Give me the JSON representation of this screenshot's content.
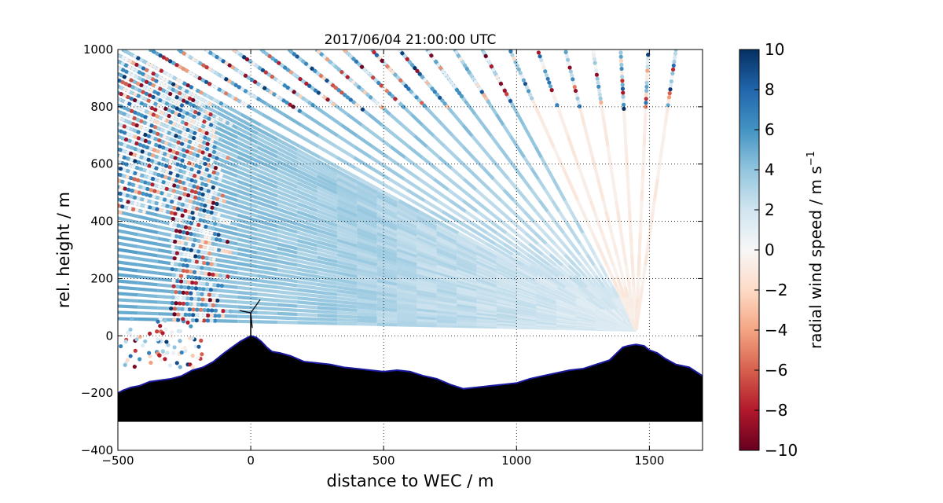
{
  "chart_data": {
    "type": "heatmap",
    "title": "2017/06/04 21:00:00 UTC",
    "xlabel": "distance to WEC / m",
    "ylabel": "rel. height / m",
    "xlim": [
      -500,
      1700
    ],
    "ylim": [
      -400,
      1000
    ],
    "xticks": [
      -500,
      0,
      500,
      1000,
      1500
    ],
    "yticks": [
      -400,
      -200,
      0,
      200,
      400,
      600,
      800,
      1000
    ],
    "xtick_labels": [
      "−500",
      "0",
      "500",
      "1000",
      "1500"
    ],
    "ytick_labels": [
      "−400",
      "−200",
      "0",
      "200",
      "400",
      "600",
      "800",
      "1000"
    ],
    "grid": true,
    "colorbar": {
      "label": "radial wind speed / m s",
      "label_superscript": "−1",
      "range": [
        -10,
        10
      ],
      "ticks": [
        -10,
        -8,
        -6,
        -4,
        -2,
        0,
        2,
        4,
        6,
        8,
        10
      ],
      "tick_labels": [
        "−10",
        "−8",
        "−6",
        "−4",
        "−2",
        "0",
        "2",
        "4",
        "6",
        "8",
        "10"
      ],
      "colormap": "RdBu",
      "stops": [
        "#67001f",
        "#b2182b",
        "#d6604d",
        "#f4a582",
        "#fddbc7",
        "#f7f7f7",
        "#d1e5f0",
        "#92c5de",
        "#4393c3",
        "#2166ac",
        "#053061"
      ]
    },
    "scan": {
      "origin": [
        1450,
        20
      ],
      "far_range": [
        -500,
        1000
      ],
      "near_speed": 1.2,
      "far_speed": 5.5
    },
    "terrain": {
      "baseline": -300,
      "x": [
        -500,
        -480,
        -450,
        -420,
        -380,
        -340,
        -300,
        -260,
        -220,
        -180,
        -140,
        -100,
        -70,
        -40,
        -20,
        0,
        20,
        40,
        60,
        80,
        110,
        150,
        200,
        250,
        300,
        350,
        400,
        450,
        500,
        550,
        600,
        650,
        700,
        750,
        800,
        850,
        900,
        950,
        1000,
        1050,
        1100,
        1150,
        1200,
        1250,
        1300,
        1350,
        1400,
        1420,
        1450,
        1480,
        1500,
        1530,
        1560,
        1600,
        1650,
        1700
      ],
      "y": [
        -200,
        -190,
        -180,
        -175,
        -160,
        -155,
        -150,
        -140,
        -120,
        -110,
        -90,
        -60,
        -40,
        -20,
        -10,
        0,
        -5,
        -20,
        -40,
        -55,
        -60,
        -70,
        -90,
        -95,
        -100,
        -110,
        -115,
        -120,
        -125,
        -120,
        -125,
        -140,
        -150,
        -170,
        -185,
        -180,
        -175,
        -170,
        -165,
        -150,
        -140,
        -130,
        -120,
        -115,
        -100,
        -85,
        -40,
        -35,
        -30,
        -35,
        -50,
        -60,
        -80,
        -100,
        -110,
        -140
      ],
      "color": "#000000",
      "outline_color": "#1a1aa0"
    },
    "turbine": {
      "x": 0,
      "hub_height": 80
    }
  }
}
